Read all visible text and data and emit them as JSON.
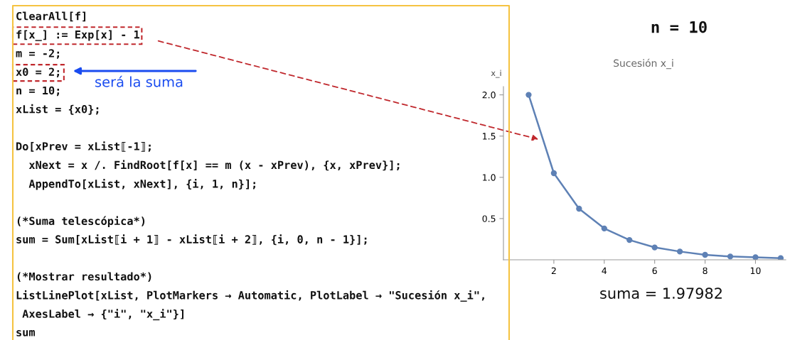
{
  "chart_data": [
    {
      "type": "other",
      "annotations": [
        "ClearAll[f]\nf[x_] := Exp[x] - 1\nm = -2;\nx0 = 2;\nn = 10;\nxList = {x0};\n\nDo[xPrev = xList⟦-1⟧;\n  xNext = x /. FindRoot[f[x] == m (x - xPrev), {x, xPrev}];\n  AppendTo[xList, xNext], {i, 1, n}];\n\n(*Suma telescópica*)\nsum = Sum[xList⟦i + 1⟧ - xList⟦i + 2⟧, {i, 0, n - 1}];\n\n(*Mostrar resultado*)\nListLinePlot[xList, PlotMarkers → Automatic, PlotLabel → \"Sucesión x_i\",\n AxesLabel → {\"i\", \"x_i\"}]\nsum",
        "será la suma"
      ]
    },
    {
      "type": "line",
      "title": "Sucesión x_i",
      "ylabel": "x_i",
      "annotations": [
        "n = 10",
        "suma = 1.97982"
      ],
      "x": [
        1,
        2,
        3,
        4,
        5,
        6,
        7,
        8,
        9,
        10,
        11
      ],
      "series": [
        {
          "color": "#5e81b5",
          "values": [
            2.0,
            1.05,
            0.62,
            0.38,
            0.24,
            0.15,
            0.1,
            0.06,
            0.04,
            0.03,
            0.02
          ]
        }
      ],
      "xlim": [
        0,
        11.2
      ],
      "ylim": [
        0,
        2.1
      ],
      "xticks": [
        2,
        4,
        6,
        8,
        10
      ],
      "yticks": [
        {
          "value": 0.5,
          "label": "0.5"
        },
        {
          "value": 1.0,
          "label": "1.0"
        },
        {
          "value": 1.5,
          "label": "1.5"
        },
        {
          "value": 2.0,
          "label": "2.0"
        }
      ],
      "marker": "circle",
      "line_style": "solid",
      "grid": false,
      "legend": false
    }
  ]
}
